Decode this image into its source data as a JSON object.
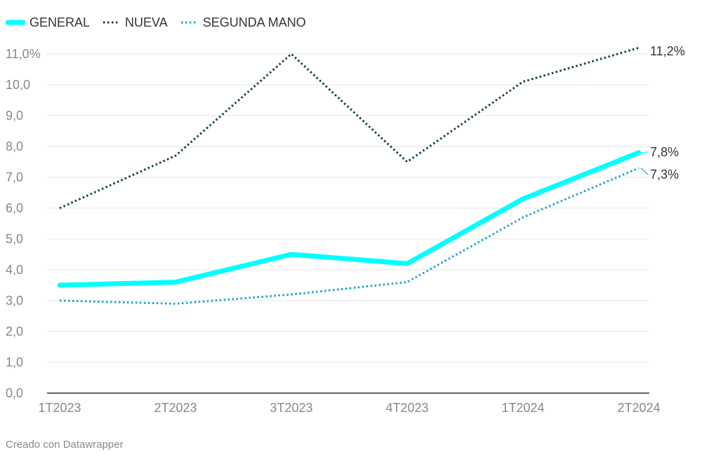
{
  "credit": "Creado con Datawrapper",
  "colors": {
    "general": "#00ffff",
    "nueva": "#113f4a",
    "segunda_mano": "#1aa6c8",
    "grid": "#e6e6e6",
    "axis": "#333333",
    "tick_label": "#888888",
    "end_label": "#333333"
  },
  "chart_data": {
    "type": "line",
    "title": "",
    "xlabel": "",
    "ylabel": "",
    "categories": [
      "1T2023",
      "2T2023",
      "3T2023",
      "4T2023",
      "1T2024",
      "2T2024"
    ],
    "ylim": [
      0,
      11.2
    ],
    "yticks": [
      0,
      1,
      2,
      3,
      4,
      5,
      6,
      7,
      8,
      9,
      10,
      11
    ],
    "ytick_labels": [
      "0,0",
      "1,0",
      "2,0",
      "3,0",
      "4,0",
      "5,0",
      "6,0",
      "7,0",
      "8,0",
      "9,0",
      "10,0",
      "11,0%"
    ],
    "grid": true,
    "legend_position": "top-left",
    "series": [
      {
        "name": "GENERAL",
        "key": "general",
        "style": "solid",
        "values": [
          3.5,
          3.6,
          4.5,
          4.2,
          6.3,
          7.8
        ],
        "end_label": "7,8%"
      },
      {
        "name": "NUEVA",
        "key": "nueva",
        "style": "dotted",
        "values": [
          6.0,
          7.7,
          11.0,
          7.5,
          10.1,
          11.2
        ],
        "end_label": "11,2%"
      },
      {
        "name": "SEGUNDA MANO",
        "key": "segunda_mano",
        "style": "dotted",
        "values": [
          3.0,
          2.9,
          3.2,
          3.6,
          5.7,
          7.3
        ],
        "end_label": "7,3%"
      }
    ]
  }
}
